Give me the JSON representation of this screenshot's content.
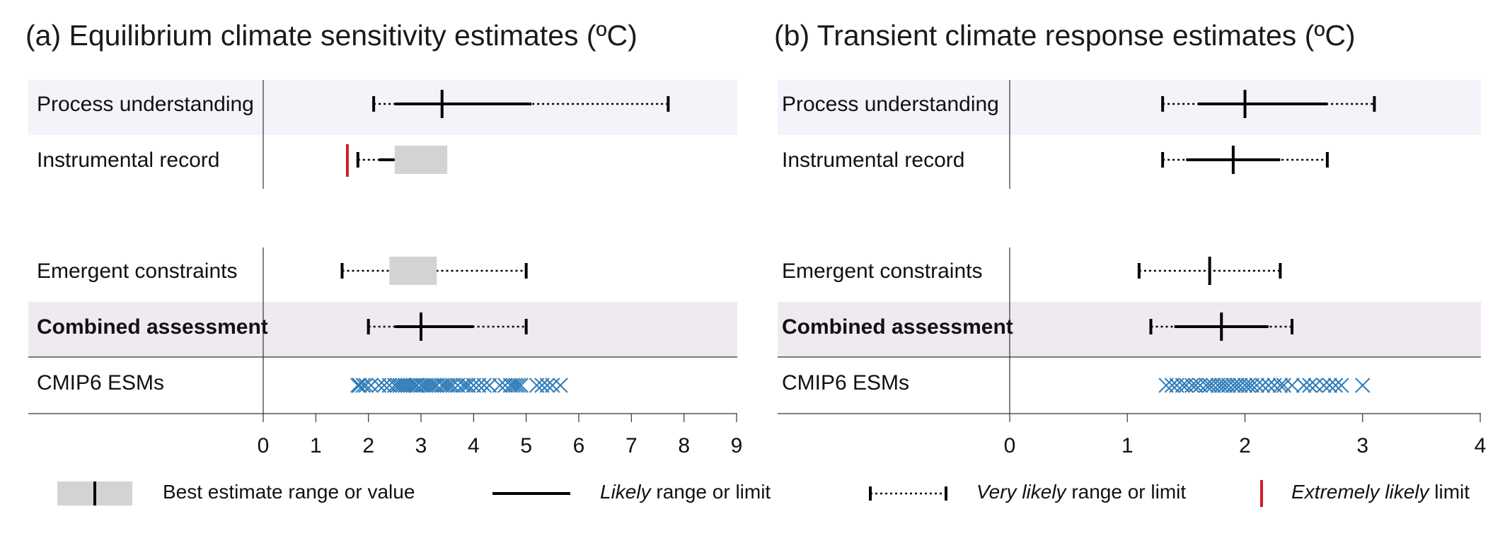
{
  "legend": {
    "best": "Best estimate range or value",
    "likely_italic": "Likely",
    "likely_rest": " range or limit",
    "very_likely_italic": "Very likely",
    "very_likely_rest": " range or limit",
    "extremely_likely_italic": "Extremely likely",
    "extremely_likely_rest": " limit"
  },
  "colors": {
    "process_band": "#f3f4f9",
    "combined_band": "#efe9f0",
    "best_box": "#d3d3d3",
    "cmip": "#2f7cb8",
    "extremely_likely": "#cc1f2c",
    "line": "#000000"
  },
  "chart_data": [
    {
      "type": "range",
      "title": "(a) Equilibrium climate sensitivity  estimates (ºC)",
      "xlim": [
        0,
        9
      ],
      "ticks": [
        0,
        1,
        2,
        3,
        4,
        5,
        6,
        7,
        8,
        9
      ],
      "rows": [
        {
          "label": "Process understanding",
          "band": "process",
          "very_likely": [
            2.1,
            7.7
          ],
          "likely": [
            2.5,
            5.1
          ],
          "best": 3.4
        },
        {
          "label": "Instrumental record",
          "extremely_likely_lower": 1.6,
          "very_likely_lower": 1.8,
          "likely_lower": 2.2,
          "best_range": [
            2.5,
            3.5
          ]
        },
        {
          "label": "Emergent constraints",
          "very_likely": [
            1.5,
            5.0
          ],
          "best_range": [
            2.4,
            3.3
          ]
        },
        {
          "label": "Combined assessment",
          "band": "combined",
          "bold": true,
          "very_likely": [
            2.0,
            5.0
          ],
          "likely": [
            2.5,
            4.0
          ],
          "best": 3.0
        },
        {
          "label": "CMIP6 ESMs",
          "points": [
            1.8,
            1.83,
            1.9,
            1.95,
            2.05,
            2.2,
            2.3,
            2.4,
            2.5,
            2.55,
            2.6,
            2.65,
            2.7,
            2.75,
            2.8,
            2.85,
            2.9,
            2.92,
            3.0,
            3.05,
            3.1,
            3.15,
            3.2,
            3.25,
            3.3,
            3.4,
            3.45,
            3.5,
            3.55,
            3.6,
            3.7,
            3.8,
            3.85,
            3.9,
            4.0,
            4.1,
            4.2,
            4.3,
            4.5,
            4.6,
            4.7,
            4.75,
            4.8,
            4.85,
            4.9,
            5.2,
            5.3,
            5.4,
            5.5,
            5.65
          ]
        }
      ]
    },
    {
      "type": "range",
      "title": "(b) Transient climate response estimates (ºC)",
      "xlim": [
        0,
        4
      ],
      "ticks": [
        0,
        1,
        2,
        3,
        4
      ],
      "rows": [
        {
          "label": "Process understanding",
          "band": "process",
          "very_likely": [
            1.3,
            3.1
          ],
          "likely": [
            1.6,
            2.7
          ],
          "best": 2.0
        },
        {
          "label": "Instrumental record",
          "very_likely": [
            1.3,
            2.7
          ],
          "likely": [
            1.5,
            2.3
          ],
          "best": 1.9
        },
        {
          "label": "Emergent constraints",
          "very_likely": [
            1.1,
            2.3
          ],
          "best": 1.7
        },
        {
          "label": "Combined assessment",
          "band": "combined",
          "bold": true,
          "very_likely": [
            1.2,
            2.4
          ],
          "likely": [
            1.4,
            2.2
          ],
          "best": 1.8
        },
        {
          "label": "CMIP6 ESMs",
          "points": [
            1.33,
            1.38,
            1.42,
            1.47,
            1.5,
            1.55,
            1.58,
            1.62,
            1.67,
            1.7,
            1.73,
            1.77,
            1.8,
            1.83,
            1.86,
            1.9,
            1.93,
            1.96,
            2.0,
            2.03,
            2.06,
            2.1,
            2.15,
            2.2,
            2.25,
            2.3,
            2.33,
            2.4,
            2.5,
            2.55,
            2.6,
            2.67,
            2.72,
            2.77,
            2.82,
            3.0
          ]
        }
      ]
    }
  ]
}
